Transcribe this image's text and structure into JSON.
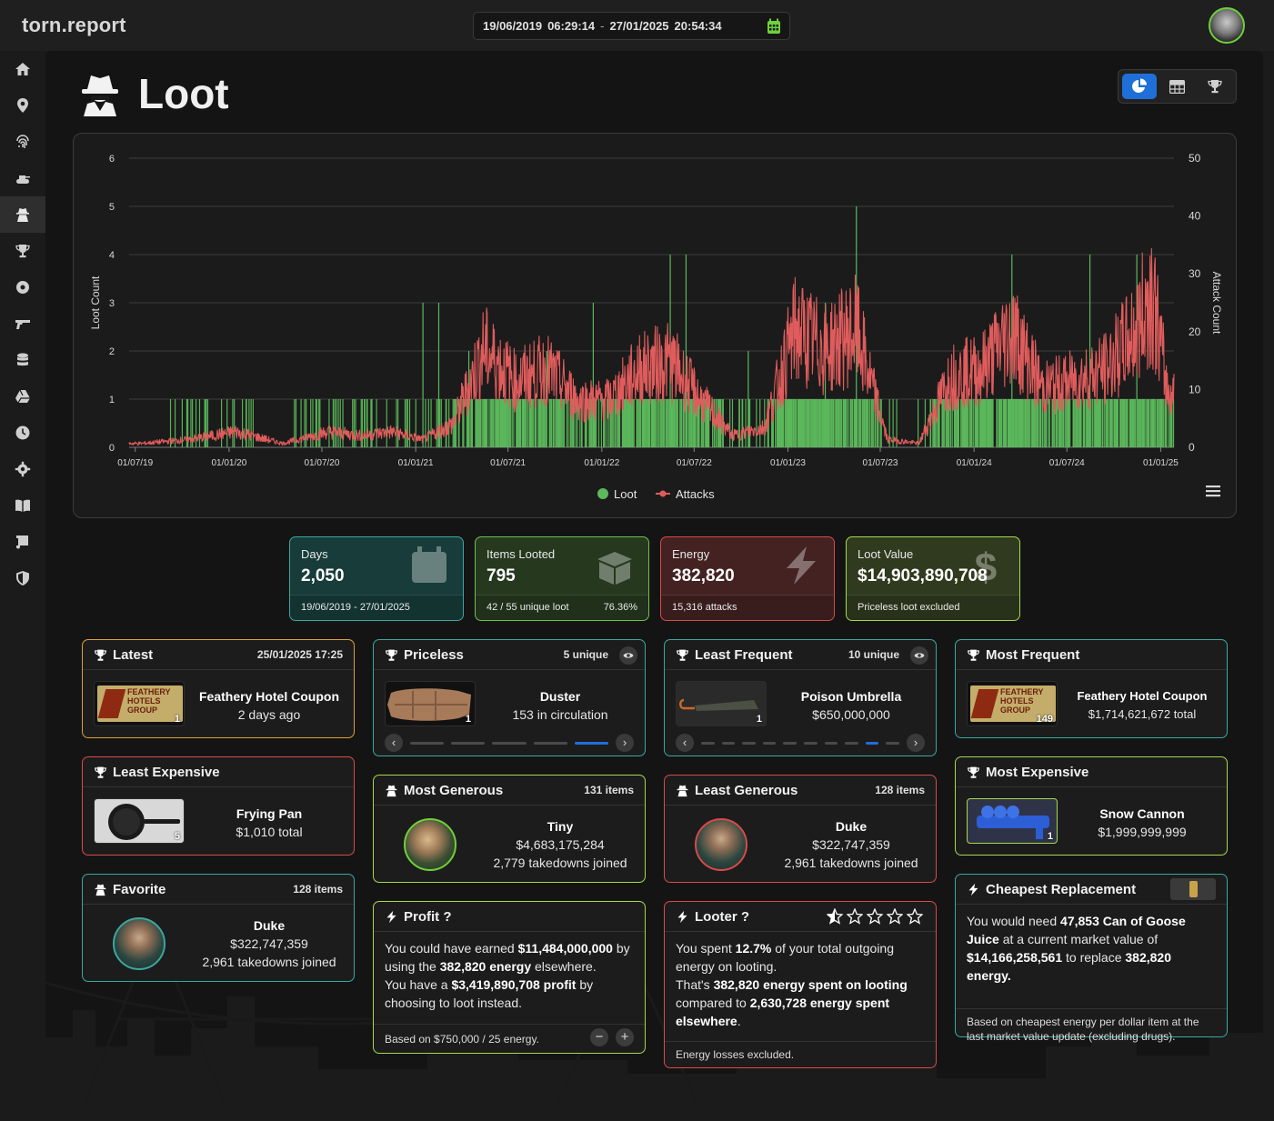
{
  "brand": "torn.report",
  "date_range": {
    "start_date": "19/06/2019",
    "start_time": "06:29:14",
    "end_date": "27/01/2025",
    "end_time": "20:54:34",
    "separator": "-"
  },
  "sidebar": {
    "items": [
      {
        "icon": "home-icon"
      },
      {
        "icon": "map-pin-icon"
      },
      {
        "icon": "fingerprint-icon"
      },
      {
        "icon": "tank-icon"
      },
      {
        "icon": "spy-icon",
        "active": true
      },
      {
        "icon": "trophy-icon"
      },
      {
        "icon": "record-icon"
      },
      {
        "icon": "gun-icon"
      },
      {
        "icon": "database-icon"
      },
      {
        "icon": "drive-icon"
      },
      {
        "icon": "clock-icon"
      },
      {
        "icon": "gear-icon"
      },
      {
        "icon": "book-icon"
      },
      {
        "icon": "scroll-icon"
      },
      {
        "icon": "shield-icon"
      }
    ]
  },
  "page": {
    "title": "Loot"
  },
  "view_switch": {
    "options": [
      "chart-pie-icon",
      "table-icon",
      "trophy-icon"
    ],
    "active": 0
  },
  "chart_data": {
    "type": "bar+line",
    "left_axis": {
      "label": "Loot Count",
      "ticks": [
        0,
        1,
        2,
        3,
        4,
        5,
        6
      ],
      "range": [
        0,
        6
      ]
    },
    "right_axis": {
      "label": "Attack Count",
      "ticks": [
        0,
        10,
        20,
        30,
        40,
        50
      ],
      "range": [
        0,
        50
      ]
    },
    "x_ticks": [
      "01/07/19",
      "01/01/20",
      "01/07/20",
      "01/01/21",
      "01/07/21",
      "01/01/22",
      "01/07/22",
      "01/01/23",
      "01/07/23",
      "01/01/24",
      "01/07/24",
      "01/01/25"
    ],
    "x_range": [
      "19/06/2019",
      "27/01/2025"
    ],
    "grid": true,
    "legend_position": "bottom",
    "series": [
      {
        "name": "Loot",
        "type": "bar",
        "color": "#5cb85c",
        "axis": "left",
        "typical_value": 1,
        "spikes": [
          {
            "date": "2021-01",
            "value": 3
          },
          {
            "date": "2021-02",
            "value": 3
          },
          {
            "date": "2021-04",
            "value": 2
          },
          {
            "date": "2021-09",
            "value": 2
          },
          {
            "date": "2021-12",
            "value": 3
          },
          {
            "date": "2022-05",
            "value": 4
          },
          {
            "date": "2022-06",
            "value": 4
          },
          {
            "date": "2022-10",
            "value": 2
          },
          {
            "date": "2023-03",
            "value": 3
          },
          {
            "date": "2023-05",
            "value": 5
          },
          {
            "date": "2024-03",
            "value": 4
          },
          {
            "date": "2024-08",
            "value": 4
          },
          {
            "date": "2024-11",
            "value": 4
          }
        ]
      },
      {
        "name": "Attacks",
        "type": "line",
        "color": "#e05c5c",
        "axis": "right",
        "monthly_peak": [
          {
            "date": "2019-07",
            "value": 1
          },
          {
            "date": "2019-10",
            "value": 2
          },
          {
            "date": "2020-01",
            "value": 4
          },
          {
            "date": "2020-04",
            "value": 1
          },
          {
            "date": "2020-07",
            "value": 4
          },
          {
            "date": "2020-09",
            "value": 3
          },
          {
            "date": "2020-11",
            "value": 4
          },
          {
            "date": "2021-01",
            "value": 2
          },
          {
            "date": "2021-03",
            "value": 6
          },
          {
            "date": "2021-05",
            "value": 25
          },
          {
            "date": "2021-07",
            "value": 17
          },
          {
            "date": "2021-09",
            "value": 20
          },
          {
            "date": "2021-11",
            "value": 12
          },
          {
            "date": "2022-01",
            "value": 12
          },
          {
            "date": "2022-03",
            "value": 20
          },
          {
            "date": "2022-05",
            "value": 22
          },
          {
            "date": "2022-07",
            "value": 12
          },
          {
            "date": "2022-09",
            "value": 3
          },
          {
            "date": "2022-11",
            "value": 5
          },
          {
            "date": "2023-01",
            "value": 30
          },
          {
            "date": "2023-03",
            "value": 25
          },
          {
            "date": "2023-05",
            "value": 30
          },
          {
            "date": "2023-07",
            "value": 2
          },
          {
            "date": "2023-09",
            "value": 1
          },
          {
            "date": "2023-11",
            "value": 18
          },
          {
            "date": "2024-01",
            "value": 20
          },
          {
            "date": "2024-03",
            "value": 30
          },
          {
            "date": "2024-05",
            "value": 15
          },
          {
            "date": "2024-07",
            "value": 17
          },
          {
            "date": "2024-09",
            "value": 20
          },
          {
            "date": "2024-11",
            "value": 30
          },
          {
            "date": "2024-12",
            "value": 40
          },
          {
            "date": "2025-01",
            "value": 14
          }
        ]
      }
    ]
  },
  "stats": [
    {
      "label": "Days",
      "value": "2,050",
      "footer": "19/06/2019 - 27/01/2025",
      "footer_right": "",
      "icon": "calendar-icon",
      "theme": "teal"
    },
    {
      "label": "Items Looted",
      "value": "795",
      "footer": "42 / 55 unique loot",
      "footer_right": "76.36%",
      "icon": "box-icon",
      "theme": "green"
    },
    {
      "label": "Energy",
      "value": "382,820",
      "footer": "15,316 attacks",
      "footer_right": "",
      "icon": "bolt-icon",
      "theme": "red"
    },
    {
      "label": "Loot Value",
      "value": "$14,903,890,708",
      "footer": "Priceless loot excluded",
      "footer_right": "",
      "icon": "dollar-icon",
      "theme": "lime"
    }
  ],
  "cards": {
    "latest": {
      "title": "Latest",
      "meta": "25/01/2025 17:25",
      "item": "Feathery Hotel Coupon",
      "sub": "2 days ago",
      "qty": "1",
      "thumb_text": [
        "FEATHERY",
        "HOTELS",
        "GROUP"
      ]
    },
    "priceless": {
      "title": "Priceless",
      "meta": "5 unique",
      "item": "Duster",
      "sub": "153 in circulation",
      "qty": "1",
      "pages": 5,
      "active_page": 4
    },
    "least_frequent": {
      "title": "Least Frequent",
      "meta": "10 unique",
      "item": "Poison Umbrella",
      "sub": "$650,000,000",
      "qty": "1",
      "pages": 10,
      "active_page": 8
    },
    "most_frequent": {
      "title": "Most Frequent",
      "item": "Feathery Hotel Coupon",
      "sub": "$1,714,621,672 total",
      "qty": "149",
      "thumb_text": [
        "FEATHERY",
        "HOTELS",
        "GROUP"
      ]
    },
    "least_expensive": {
      "title": "Least Expensive",
      "item": "Frying Pan",
      "sub": "$1,010 total",
      "qty": "5"
    },
    "most_generous": {
      "title": "Most Generous",
      "meta": "131 items",
      "name": "Tiny",
      "value": "$4,683,175,284",
      "sub": "2,779 takedowns joined"
    },
    "least_generous": {
      "title": "Least Generous",
      "meta": "128 items",
      "name": "Duke",
      "value": "$322,747,359",
      "sub": "2,961 takedowns joined"
    },
    "most_expensive": {
      "title": "Most Expensive",
      "item": "Snow Cannon",
      "sub": "$1,999,999,999",
      "qty": "1"
    },
    "favorite": {
      "title": "Favorite",
      "meta": "128 items",
      "name": "Duke",
      "value": "$322,747,359",
      "sub": "2,961 takedowns joined"
    },
    "profit": {
      "title": "Profit ?",
      "p1_a": "You could have earned ",
      "p1_b": "$11,484,000,000",
      "p1_c": " by using the ",
      "p1_d": "382,820 energy",
      "p1_e": " elsewhere.",
      "p2_a": "You have a ",
      "p2_b": "$3,419,890,708 profit",
      "p2_c": " by choosing to loot instead.",
      "footer": "Based on $750,000 / 25 energy.",
      "minus": "−",
      "plus": "+"
    },
    "looter": {
      "title": "Looter ?",
      "rating": 0.5,
      "rating_max": 5,
      "p1_a": "You spent ",
      "p1_b": "12.7%",
      "p1_c": " of your total outgoing energy on looting.",
      "p2_a": "That's ",
      "p2_b": "382,820 energy spent on looting",
      "p2_c": " compared to ",
      "p2_d": "2,630,728 energy spent elsewhere",
      "p2_e": ".",
      "footer": "Energy losses excluded."
    },
    "cheapest": {
      "title": "Cheapest Replacement",
      "t1": "You would need ",
      "t2": "47,853 Can of Goose Juice",
      "t3": " at a current market value of ",
      "t4": "$14,166,258,561",
      "t5": " to replace ",
      "t6": "382,820 energy.",
      "footer": "Based on cheapest energy per dollar item at the last market value update (excluding drugs)."
    }
  },
  "colors": {
    "teal": "#3aa8a0",
    "green": "#6fc14a",
    "red": "#d94a4a",
    "lime": "#a6d94a",
    "orange": "#e0a030",
    "blue": "#1f6fd9"
  }
}
